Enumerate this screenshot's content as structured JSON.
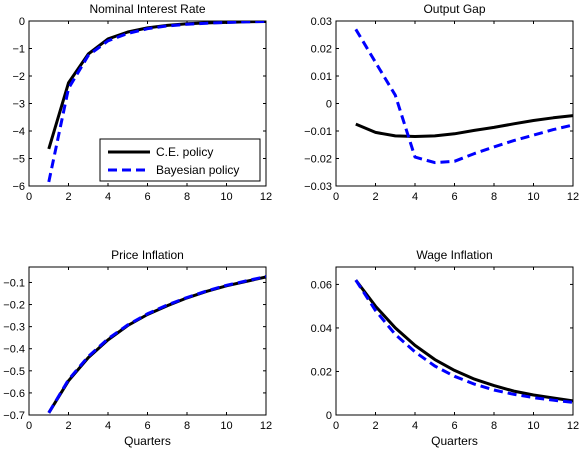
{
  "chart_data": [
    {
      "type": "line",
      "title": "Nominal Interest Rate",
      "xlabel": "",
      "ylabel": "",
      "xlim": [
        0,
        12
      ],
      "ylim": [
        -6,
        0
      ],
      "xticks": [
        0,
        2,
        4,
        6,
        8,
        10,
        12
      ],
      "yticks": [
        -6,
        -5,
        -4,
        -3,
        -2,
        -1,
        0
      ],
      "ytick_labels": [
        "−6",
        "−5",
        "−4",
        "−3",
        "−2",
        "−1",
        "0"
      ],
      "x": [
        1,
        2,
        3,
        4,
        5,
        6,
        7,
        8,
        9,
        10,
        11,
        12
      ],
      "series": [
        {
          "name": "C.E. policy",
          "color": "#000000",
          "dash": "solid",
          "values": [
            -4.65,
            -2.25,
            -1.2,
            -0.65,
            -0.4,
            -0.25,
            -0.16,
            -0.1,
            -0.07,
            -0.05,
            -0.03,
            -0.02
          ]
        },
        {
          "name": "Bayesian policy",
          "color": "#0000ff",
          "dash": "dashed",
          "values": [
            -5.85,
            -2.45,
            -1.25,
            -0.72,
            -0.45,
            -0.28,
            -0.18,
            -0.12,
            -0.08,
            -0.05,
            -0.03,
            -0.02
          ]
        }
      ],
      "legend": {
        "position": "bottom-right"
      }
    },
    {
      "type": "line",
      "title": "Output Gap",
      "xlabel": "",
      "ylabel": "",
      "xlim": [
        0,
        12
      ],
      "ylim": [
        -0.03,
        0.03
      ],
      "xticks": [
        0,
        2,
        4,
        6,
        8,
        10,
        12
      ],
      "yticks": [
        -0.03,
        -0.02,
        -0.01,
        0,
        0.01,
        0.02,
        0.03
      ],
      "ytick_labels": [
        "−0.03",
        "−0.02",
        "−0.01",
        "0",
        "0.01",
        "0.02",
        "0.03"
      ],
      "x": [
        1,
        2,
        3,
        4,
        5,
        6,
        7,
        8,
        9,
        10,
        11,
        12
      ],
      "series": [
        {
          "name": "C.E. policy",
          "color": "#000000",
          "dash": "solid",
          "values": [
            -0.0075,
            -0.0105,
            -0.0118,
            -0.012,
            -0.0118,
            -0.011,
            -0.0098,
            -0.0087,
            -0.0074,
            -0.0062,
            -0.0052,
            -0.0044
          ]
        },
        {
          "name": "Bayesian policy",
          "color": "#0000ff",
          "dash": "dashed",
          "values": [
            0.027,
            0.015,
            0.003,
            -0.0195,
            -0.0215,
            -0.021,
            -0.0182,
            -0.0158,
            -0.0135,
            -0.0115,
            -0.0095,
            -0.0078
          ]
        }
      ]
    },
    {
      "type": "line",
      "title": "Price Inflation",
      "xlabel": "Quarters",
      "ylabel": "",
      "xlim": [
        0,
        12
      ],
      "ylim": [
        -0.7,
        -0.03
      ],
      "xticks": [
        0,
        2,
        4,
        6,
        8,
        10,
        12
      ],
      "yticks": [
        -0.7,
        -0.6,
        -0.5,
        -0.4,
        -0.3,
        -0.2,
        -0.1
      ],
      "ytick_labels": [
        "−0.7",
        "−0.6",
        "−0.5",
        "−0.4",
        "−0.3",
        "−0.2",
        "−0.1"
      ],
      "x": [
        1,
        2,
        3,
        4,
        5,
        6,
        7,
        8,
        9,
        10,
        11,
        12
      ],
      "series": [
        {
          "name": "C.E. policy",
          "color": "#000000",
          "dash": "solid",
          "values": [
            -0.69,
            -0.545,
            -0.44,
            -0.36,
            -0.295,
            -0.245,
            -0.205,
            -0.17,
            -0.14,
            -0.115,
            -0.095,
            -0.075
          ]
        },
        {
          "name": "Bayesian policy",
          "color": "#0000ff",
          "dash": "dashed",
          "values": [
            -0.69,
            -0.54,
            -0.435,
            -0.355,
            -0.292,
            -0.242,
            -0.202,
            -0.168,
            -0.138,
            -0.113,
            -0.093,
            -0.073
          ]
        }
      ]
    },
    {
      "type": "line",
      "title": "Wage Inflation",
      "xlabel": "Quarters",
      "ylabel": "",
      "xlim": [
        0,
        12
      ],
      "ylim": [
        0,
        0.068
      ],
      "xticks": [
        0,
        2,
        4,
        6,
        8,
        10,
        12
      ],
      "yticks": [
        0,
        0.02,
        0.04,
        0.06
      ],
      "ytick_labels": [
        "0",
        "0.02",
        "0.04",
        "0.06"
      ],
      "x": [
        1,
        2,
        3,
        4,
        5,
        6,
        7,
        8,
        9,
        10,
        11,
        12
      ],
      "series": [
        {
          "name": "C.E. policy",
          "color": "#000000",
          "dash": "solid",
          "values": [
            0.062,
            0.05,
            0.04,
            0.032,
            0.0255,
            0.0205,
            0.0165,
            0.0135,
            0.011,
            0.0092,
            0.0078,
            0.0065
          ]
        },
        {
          "name": "Bayesian policy",
          "color": "#0000ff",
          "dash": "dashed",
          "values": [
            0.062,
            0.048,
            0.037,
            0.029,
            0.0225,
            0.0178,
            0.0142,
            0.0115,
            0.0095,
            0.008,
            0.0068,
            0.0058
          ]
        }
      ]
    }
  ]
}
